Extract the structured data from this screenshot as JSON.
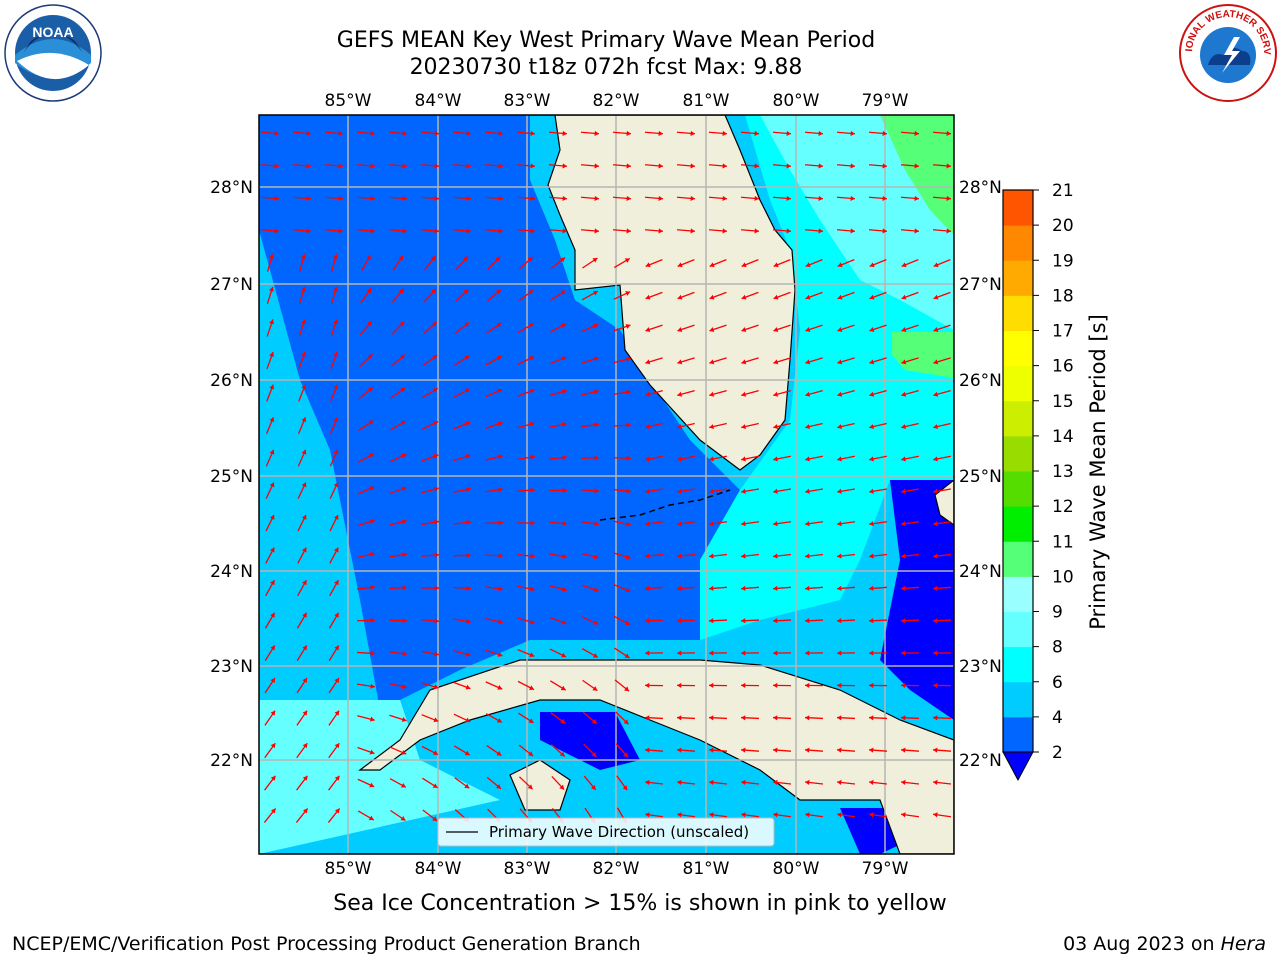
{
  "title": {
    "line1": "GEFS MEAN Key West Primary Wave Mean Period",
    "line2": "20230730 t18z 072h fcst   Max: 9.88"
  },
  "map": {
    "lon_labels": [
      "85°W",
      "84°W",
      "83°W",
      "82°W",
      "81°W",
      "80°W",
      "79°W"
    ],
    "lat_labels": [
      "28°N",
      "27°N",
      "26°N",
      "25°N",
      "24°N",
      "23°N",
      "22°N"
    ],
    "legend_label": "Primary Wave Direction (unscaled)",
    "arrow_color": "#ff0000",
    "land_color": "#efefdc"
  },
  "colorbar": {
    "label": "Primary Wave Mean Period [s]",
    "ticks": [
      "2",
      "4",
      "6",
      "8",
      "9",
      "10",
      "11",
      "12",
      "13",
      "14",
      "15",
      "16",
      "17",
      "18",
      "19",
      "20",
      "21"
    ],
    "colors": [
      "#0066ff",
      "#00ccff",
      "#00ffff",
      "#66ffff",
      "#99ffff",
      "#55ff77",
      "#00ee00",
      "#55dd00",
      "#99dd00",
      "#ccee00",
      "#eeff00",
      "#ffff00",
      "#ffdd00",
      "#ffaa00",
      "#ff8800",
      "#ff5500",
      "#ff2200",
      "#ff0000"
    ],
    "under_color": "#0000ff"
  },
  "subtitle": "Sea Ice Concentration > 15% is shown in pink to yellow",
  "footer": {
    "left": "NCEP/EMC/Verification Post Processing Product Generation Branch",
    "date": "03 Aug 2023 on",
    "host": "Hera"
  },
  "logos": {
    "noaa": "NOAA",
    "nws": "NATIONAL WEATHER SERVICE"
  }
}
